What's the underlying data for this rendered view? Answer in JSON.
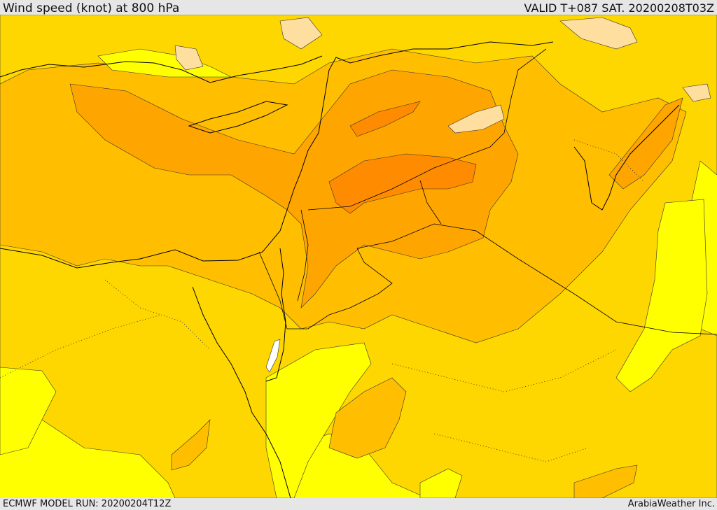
{
  "header": {
    "title": "Wind speed (knot) at 800 hPa",
    "valid": "VALID T+087 SAT. 20200208T03Z"
  },
  "footer": {
    "model_run": "ECMWF MODEL RUN: 20200204T12Z",
    "credit": "ArabiaWeather Inc."
  },
  "map": {
    "colors": {
      "band_lightest": "#ffdfa0",
      "band_yellow": "#ffff00",
      "band_gold": "#ffd700",
      "band_amber": "#ffbf00",
      "band_orange": "#ffa500",
      "band_darkorange": "#ff8c00",
      "land_border": "#000000",
      "white_patch": "#ffffff"
    }
  }
}
